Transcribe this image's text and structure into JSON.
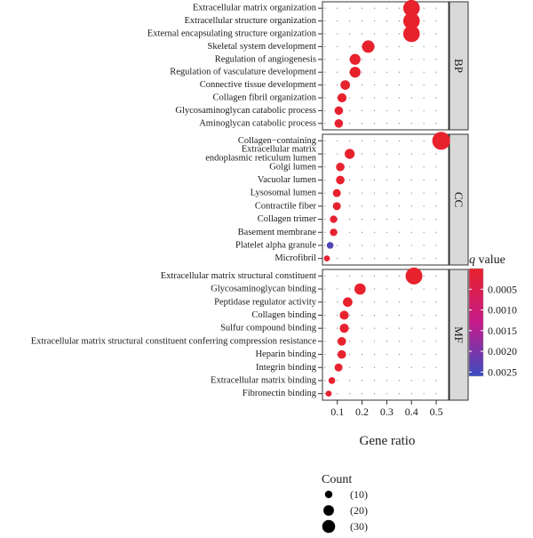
{
  "chart_data": {
    "type": "scatter",
    "title": "",
    "xlabel": "Gene ratio",
    "ylabel": "",
    "xlim": [
      0.04,
      0.55
    ],
    "xticks": [
      0.1,
      0.2,
      0.3,
      0.4,
      0.5
    ],
    "xtick_labels": [
      "0.1",
      "0.2",
      "0.3",
      "0.4",
      "0.5"
    ],
    "grid": "dotted",
    "facets": [
      {
        "name": "BP",
        "terms": [
          {
            "term": "Extracellular matrix organization",
            "gene_ratio": 0.4,
            "count": 30,
            "q_value": 1e-05
          },
          {
            "term": "Extracellular structure organization",
            "gene_ratio": 0.4,
            "count": 30,
            "q_value": 1e-05
          },
          {
            "term": "External encapsulating structure organization",
            "gene_ratio": 0.4,
            "count": 30,
            "q_value": 1e-05
          },
          {
            "term": "Skeletal system development",
            "gene_ratio": 0.225,
            "count": 17,
            "q_value": 2e-05
          },
          {
            "term": "Regulation of angiogenesis",
            "gene_ratio": 0.172,
            "count": 13,
            "q_value": 3e-05
          },
          {
            "term": "Regulation of vasculature development",
            "gene_ratio": 0.172,
            "count": 13,
            "q_value": 3e-05
          },
          {
            "term": "Connective tissue development",
            "gene_ratio": 0.132,
            "count": 10,
            "q_value": 4e-05
          },
          {
            "term": "Collagen fibril organization",
            "gene_ratio": 0.119,
            "count": 9,
            "q_value": 4e-05
          },
          {
            "term": "Glycosaminoglycan catabolic process",
            "gene_ratio": 0.106,
            "count": 8,
            "q_value": 5e-05
          },
          {
            "term": "Aminoglycan catabolic process",
            "gene_ratio": 0.106,
            "count": 8,
            "q_value": 5e-05
          }
        ]
      },
      {
        "name": "CC",
        "terms": [
          {
            "term": "Collagen−containing",
            "term_line2": "",
            "gene_ratio": 0.52,
            "count": 35,
            "q_value": 1e-05
          },
          {
            "term": "Extracellular matrix",
            "term_line2": "endoplasmic reticulum lumen",
            "gene_ratio": 0.15,
            "count": 11,
            "q_value": 3e-05
          },
          {
            "term": "Golgi lumen",
            "gene_ratio": 0.112,
            "count": 8,
            "q_value": 5e-05
          },
          {
            "term": "Vacuolar lumen",
            "gene_ratio": 0.112,
            "count": 8,
            "q_value": 5e-05
          },
          {
            "term": "Lysosomal lumen",
            "gene_ratio": 0.098,
            "count": 7,
            "q_value": 6e-05
          },
          {
            "term": "Contractile fiber",
            "gene_ratio": 0.098,
            "count": 7,
            "q_value": 6e-05
          },
          {
            "term": "Collagen trimer",
            "gene_ratio": 0.085,
            "count": 6,
            "q_value": 8e-05
          },
          {
            "term": "Basement membrane",
            "gene_ratio": 0.085,
            "count": 6,
            "q_value": 9e-05
          },
          {
            "term": "Platelet alpha granule",
            "gene_ratio": 0.071,
            "count": 5,
            "q_value": 0.0024
          },
          {
            "term": "Microfibril",
            "gene_ratio": 0.058,
            "count": 4,
            "q_value": 0.00012
          }
        ]
      },
      {
        "name": "MF",
        "terms": [
          {
            "term": "Extracellular matrix structural constituent",
            "gene_ratio": 0.41,
            "count": 31,
            "q_value": 1e-05
          },
          {
            "term": "Glycosaminoglycan binding",
            "gene_ratio": 0.192,
            "count": 14,
            "q_value": 2e-05
          },
          {
            "term": "Peptidase regulator activity",
            "gene_ratio": 0.142,
            "count": 10,
            "q_value": 3e-05
          },
          {
            "term": "Collagen binding",
            "gene_ratio": 0.128,
            "count": 9,
            "q_value": 4e-05
          },
          {
            "term": "Sulfur compound binding",
            "gene_ratio": 0.128,
            "count": 9,
            "q_value": 4e-05
          },
          {
            "term": "Extracellular matrix structural constituent conferring compression resistance",
            "gene_ratio": 0.118,
            "count": 8,
            "q_value": 5e-05
          },
          {
            "term": "Heparin binding",
            "gene_ratio": 0.118,
            "count": 8,
            "q_value": 5e-05
          },
          {
            "term": "Integrin binding",
            "gene_ratio": 0.105,
            "count": 7,
            "q_value": 6e-05
          },
          {
            "term": "Extracellular matrix binding",
            "gene_ratio": 0.078,
            "count": 5,
            "q_value": 7e-05
          },
          {
            "term": "Fibronectin binding",
            "gene_ratio": 0.065,
            "count": 4,
            "q_value": 8e-05
          }
        ]
      }
    ],
    "color_legend": {
      "title_italic": "q",
      "title_rest": " value",
      "ticks": [
        0.0005,
        0.001,
        0.0015,
        0.002,
        0.0025
      ],
      "tick_labels": [
        "0.0005",
        "0.0010",
        "0.0015",
        "0.0020",
        "0.0025"
      ],
      "range": [
        0.0,
        0.0026
      ],
      "low_color": "#e8222b",
      "mid_color": "#c51b8a",
      "high_color": "#3b4cc0"
    },
    "size_legend": {
      "title": "Count",
      "entries": [
        {
          "count": 10,
          "label": "(10)"
        },
        {
          "count": 20,
          "label": "(20)"
        },
        {
          "count": 30,
          "label": "(30)"
        }
      ],
      "placement": "bottom"
    }
  }
}
